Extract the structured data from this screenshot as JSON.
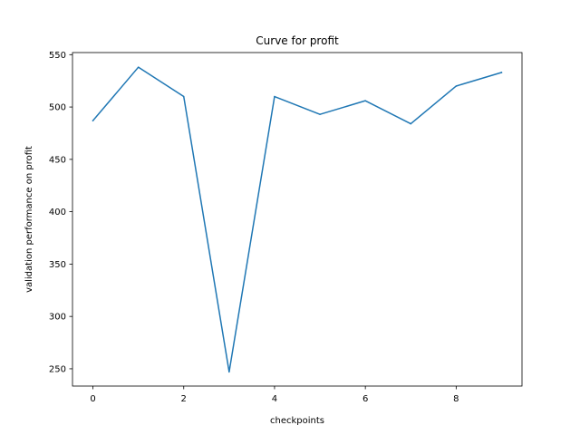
{
  "chart_data": {
    "type": "line",
    "title": "Curve for profit",
    "xlabel": "checkpoints",
    "ylabel": "validation performance on profit",
    "x": [
      0,
      1,
      2,
      3,
      4,
      5,
      6,
      7,
      8,
      9
    ],
    "series": [
      {
        "values": [
          487,
          538,
          510,
          247,
          510,
          493,
          506,
          484,
          520,
          533
        ],
        "color": "#1f77b4"
      }
    ],
    "xlim": [
      -0.45,
      9.45
    ],
    "ylim": [
      233.5,
      552
    ],
    "xticks": [
      0,
      2,
      4,
      6,
      8
    ],
    "yticks": [
      250,
      300,
      350,
      400,
      450,
      500,
      550
    ],
    "grid": false,
    "legend": "none"
  }
}
